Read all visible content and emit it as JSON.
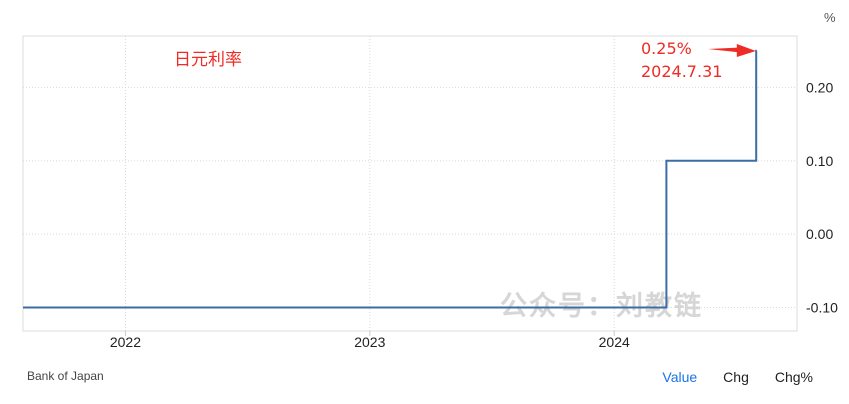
{
  "chart_data": {
    "type": "line",
    "title": "日元利率",
    "unit": "%",
    "y_ticks": [
      "0.20",
      "0.10",
      "0.00",
      "-0.10"
    ],
    "ylim": [
      -0.132,
      0.27
    ],
    "x_ticks": [
      "2022",
      "2023",
      "2024"
    ],
    "x_tick_dates": [
      "2022-01-01",
      "2023-01-01",
      "2024-01-01"
    ],
    "xlim": [
      "2021-08-01",
      "2024-09-30"
    ],
    "series": [
      {
        "step": "after",
        "color": "#3a6ea5",
        "points": [
          {
            "x": "2021-08-01",
            "y": -0.1
          },
          {
            "x": "2024-03-19",
            "y": 0.1
          },
          {
            "x": "2024-07-31",
            "y": 0.25
          },
          {
            "x": "2024-08-01",
            "y": 0.25
          }
        ]
      }
    ],
    "annotation": {
      "value": "0.25%",
      "date": "2024.7.31"
    },
    "grid": true
  },
  "watermark": "公众号：刘教链",
  "source": "Bank of Japan",
  "toggles": [
    {
      "label": "Value",
      "active": true
    },
    {
      "label": "Chg",
      "active": false
    },
    {
      "label": "Chg%",
      "active": false
    }
  ],
  "colors": {
    "line": "#3a6ea5",
    "annotation": "#ee2b24",
    "active_toggle": "#1a73e8"
  }
}
